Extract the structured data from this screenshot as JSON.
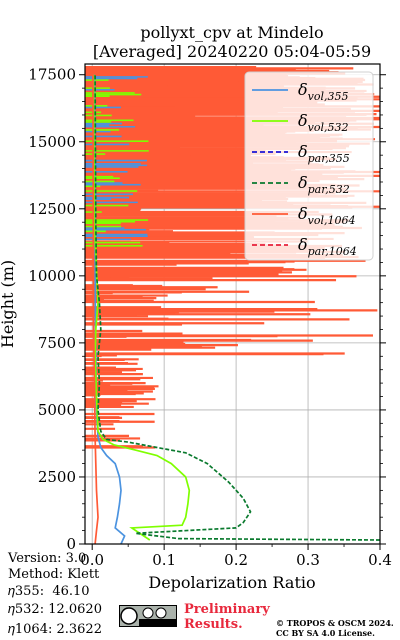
{
  "title": {
    "line1": "pollyxt_cpv at Mindelo",
    "line2": "[Averaged] 20240220 05:04-05:59"
  },
  "info": {
    "version": "Version: 3.0",
    "method": "Method: Klett",
    "eta355": "𝜂355:  46.10",
    "eta532": "𝜂532: 12.0620",
    "eta1064": "𝜂1064: 2.3622"
  },
  "preliminary": {
    "line1": "Preliminary",
    "line2": "Results."
  },
  "copyright": {
    "line1": "© TROPOS & OSCM 2024.",
    "line2": "CC BY SA 4.0 License."
  },
  "colors": {
    "vol355": "#4b93e0",
    "vol532": "#7fff00",
    "par355": "#1a14d6",
    "par532": "#0a7a2e",
    "vol1064": "#ff5a36",
    "par1064": "#e8203a",
    "prelim": "#e8283c"
  },
  "chart_data": {
    "type": "line",
    "title": "pollyxt_cpv at Mindelo [Averaged] 20240220 05:04-05:59",
    "xlabel": "Depolarization Ratio",
    "ylabel": "Height (m)",
    "xlim": [
      -0.01,
      0.4
    ],
    "ylim": [
      0,
      17900
    ],
    "xticks": [
      "0.0",
      "0.1",
      "0.2",
      "0.3",
      "0.4"
    ],
    "yticks": [
      "0",
      "2500",
      "5000",
      "7500",
      "10000",
      "12500",
      "15000",
      "17500"
    ],
    "grid": true,
    "legend_position": "top-right",
    "legend": [
      {
        "key": "vol355",
        "name_base": "δ",
        "name_sub": "vol,355",
        "style": "solid"
      },
      {
        "key": "vol532",
        "name_base": "δ",
        "name_sub": "vol,532",
        "style": "solid"
      },
      {
        "key": "par355",
        "name_base": "δ",
        "name_sub": "par,355",
        "style": "dashed"
      },
      {
        "key": "par532",
        "name_base": "δ",
        "name_sub": "par,532",
        "style": "dashed"
      },
      {
        "key": "vol1064",
        "name_base": "δ",
        "name_sub": "vol,1064",
        "style": "solid"
      },
      {
        "key": "par1064",
        "name_base": "δ",
        "name_sub": "par,1064",
        "style": "dashed"
      }
    ],
    "series": [
      {
        "key": "vol355",
        "name": "δvol,355",
        "points": [
          [
            0.04,
            0
          ],
          [
            0.045,
            300
          ],
          [
            0.032,
            600
          ],
          [
            0.035,
            1000
          ],
          [
            0.038,
            1500
          ],
          [
            0.04,
            2000
          ],
          [
            0.038,
            2500
          ],
          [
            0.032,
            3000
          ],
          [
            0.02,
            3300
          ],
          [
            0.012,
            3600
          ],
          [
            0.008,
            4000
          ],
          [
            0.006,
            5000
          ],
          [
            0.005,
            7000
          ],
          [
            0.004,
            10000
          ],
          [
            0.003,
            17500
          ]
        ]
      },
      {
        "key": "vol532",
        "name": "δvol,532",
        "points": [
          [
            0.08,
            150
          ],
          [
            0.055,
            600
          ],
          [
            0.125,
            700
          ],
          [
            0.13,
            1000
          ],
          [
            0.133,
            1500
          ],
          [
            0.135,
            2000
          ],
          [
            0.13,
            2500
          ],
          [
            0.11,
            3000
          ],
          [
            0.09,
            3300
          ],
          [
            0.06,
            3500
          ],
          [
            0.03,
            3700
          ],
          [
            0.015,
            3900
          ],
          [
            0.008,
            4200
          ],
          [
            0.006,
            5500
          ],
          [
            0.004,
            7000
          ],
          [
            0.005,
            8000
          ],
          [
            0.008,
            9000
          ],
          [
            0.003,
            12000
          ],
          [
            0.002,
            17500
          ]
        ]
      },
      {
        "key": "par532",
        "name": "δpar,532",
        "points": [
          [
            0.4,
            150
          ],
          [
            0.12,
            200
          ],
          [
            0.06,
            400
          ],
          [
            0.2,
            600
          ],
          [
            0.21,
            800
          ],
          [
            0.22,
            1200
          ],
          [
            0.21,
            1700
          ],
          [
            0.19,
            2300
          ],
          [
            0.16,
            3000
          ],
          [
            0.13,
            3400
          ],
          [
            0.09,
            3600
          ],
          [
            0.05,
            3800
          ],
          [
            0.02,
            3900
          ],
          [
            0.012,
            4200
          ],
          [
            0.008,
            5000
          ],
          [
            0.01,
            6000
          ],
          [
            0.008,
            7000
          ],
          [
            0.012,
            8000
          ],
          [
            0.01,
            9000
          ],
          [
            0.006,
            10000
          ],
          [
            0.005,
            12000
          ],
          [
            0.004,
            17500
          ]
        ]
      },
      {
        "key": "vol1064",
        "name": "δvol,1064",
        "points": [
          [
            0.004,
            0
          ],
          [
            0.006,
            500
          ],
          [
            0.008,
            1000
          ],
          [
            0.006,
            2000
          ],
          [
            0.005,
            3000
          ],
          [
            0.004,
            4000
          ],
          [
            0.003,
            6000
          ],
          [
            0.002,
            8000
          ],
          [
            0.001,
            17500
          ]
        ]
      }
    ]
  }
}
